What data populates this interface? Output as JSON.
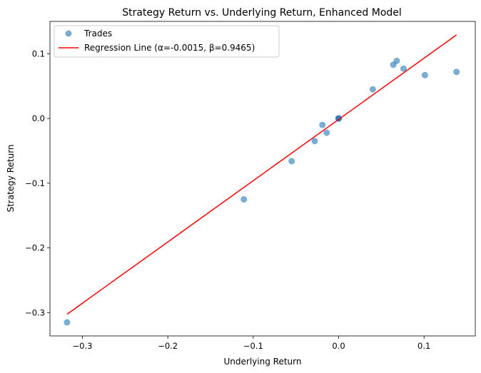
{
  "chart_data": {
    "type": "scatter",
    "title": "Strategy Return vs. Underlying Return, Enhanced Model",
    "xlabel": "Underlying Return",
    "ylabel": "Strategy Return",
    "xlim": [
      -0.338,
      0.16
    ],
    "ylim": [
      -0.336,
      0.15
    ],
    "xticks": [
      -0.3,
      -0.2,
      -0.1,
      0.0,
      0.1
    ],
    "xtick_labels": [
      "−0.3",
      "−0.2",
      "−0.1",
      "0.0",
      "0.1"
    ],
    "yticks": [
      -0.3,
      -0.2,
      -0.1,
      0.0,
      0.1
    ],
    "ytick_labels": [
      "−0.3",
      "−0.2",
      "−0.1",
      "0.0",
      "0.1"
    ],
    "grid": false,
    "legend_position": "top-left",
    "series": [
      {
        "name": "Trades",
        "kind": "scatter",
        "color": "#1f77b4",
        "points": [
          {
            "x": -0.318,
            "y": -0.315
          },
          {
            "x": -0.111,
            "y": -0.125
          },
          {
            "x": -0.055,
            "y": -0.066
          },
          {
            "x": -0.028,
            "y": -0.035
          },
          {
            "x": -0.019,
            "y": -0.01
          },
          {
            "x": -0.014,
            "y": -0.022
          },
          {
            "x": 0.0,
            "y": 0.0
          },
          {
            "x": 0.0,
            "y": 0.0
          },
          {
            "x": 0.0,
            "y": 0.0
          },
          {
            "x": 0.04,
            "y": 0.045
          },
          {
            "x": 0.064,
            "y": 0.083
          },
          {
            "x": 0.068,
            "y": 0.089
          },
          {
            "x": 0.076,
            "y": 0.077
          },
          {
            "x": 0.101,
            "y": 0.067
          },
          {
            "x": 0.138,
            "y": 0.072
          }
        ]
      },
      {
        "name": "Regression Line (α=-0.0015, β=0.9465)",
        "kind": "line",
        "color": "#ff0000",
        "points": [
          {
            "x": -0.318,
            "y": -0.3025
          },
          {
            "x": 0.138,
            "y": 0.1291
          }
        ]
      }
    ]
  }
}
